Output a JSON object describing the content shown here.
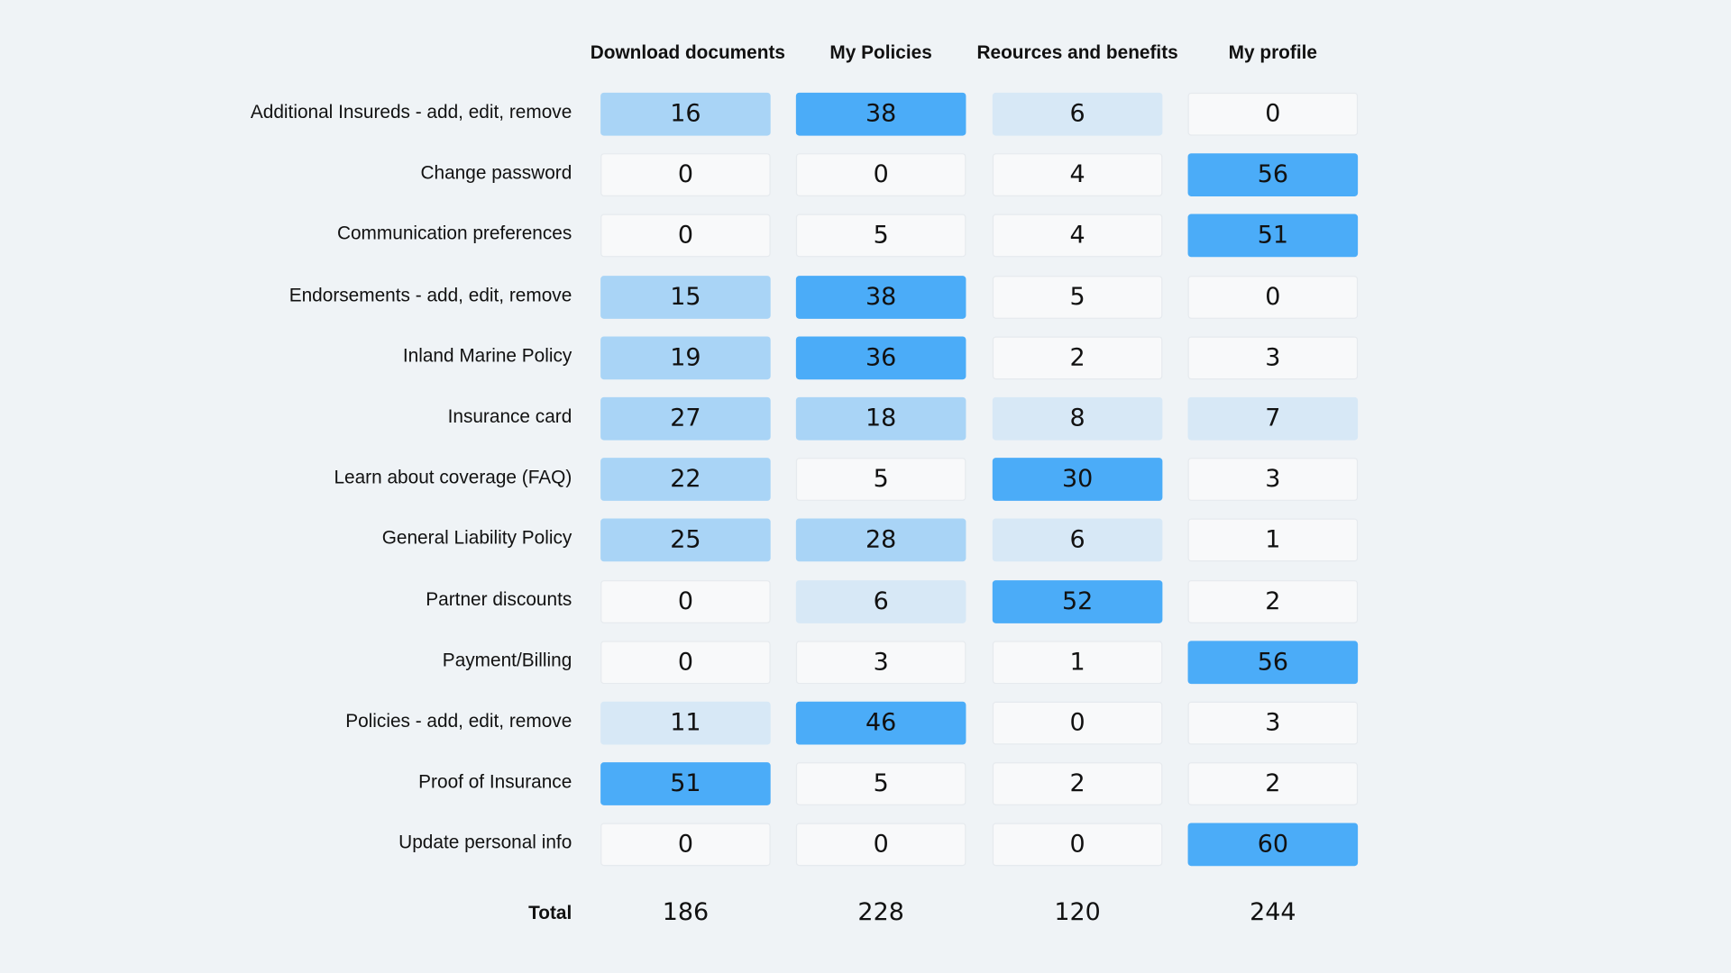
{
  "chart_data": {
    "type": "heatmap",
    "columns": [
      "Download documents",
      "My Policies",
      "Reources and benefits",
      "My profile"
    ],
    "rows": [
      {
        "label": "Additional Insureds - add, edit, remove",
        "values": [
          16,
          38,
          6,
          0
        ]
      },
      {
        "label": "Change password",
        "values": [
          0,
          0,
          4,
          56
        ]
      },
      {
        "label": "Communication preferences",
        "values": [
          0,
          5,
          4,
          51
        ]
      },
      {
        "label": "Endorsements - add, edit, remove",
        "values": [
          15,
          38,
          5,
          0
        ]
      },
      {
        "label": "Inland Marine Policy",
        "values": [
          19,
          36,
          2,
          3
        ]
      },
      {
        "label": "Insurance card",
        "values": [
          27,
          18,
          8,
          7
        ]
      },
      {
        "label": "Learn about coverage (FAQ)",
        "values": [
          22,
          5,
          30,
          3
        ]
      },
      {
        "label": "General Liability Policy",
        "values": [
          25,
          28,
          6,
          1
        ]
      },
      {
        "label": "Partner discounts",
        "values": [
          0,
          6,
          52,
          2
        ]
      },
      {
        "label": "Payment/Billing",
        "values": [
          0,
          3,
          1,
          56
        ]
      },
      {
        "label": "Policies - add, edit, remove",
        "values": [
          11,
          46,
          0,
          3
        ]
      },
      {
        "label": "Proof of Insurance",
        "values": [
          51,
          5,
          2,
          2
        ]
      },
      {
        "label": "Update personal info",
        "values": [
          0,
          0,
          0,
          60
        ]
      }
    ],
    "total_label": "Total",
    "totals": [
      186,
      228,
      120,
      244
    ]
  },
  "colors": {
    "background": "#eff3f6",
    "level_none": "#f8f9fa",
    "level_low": "#d7e8f6",
    "level_mid": "#a9d4f6",
    "level_high": "#4bacf8"
  }
}
